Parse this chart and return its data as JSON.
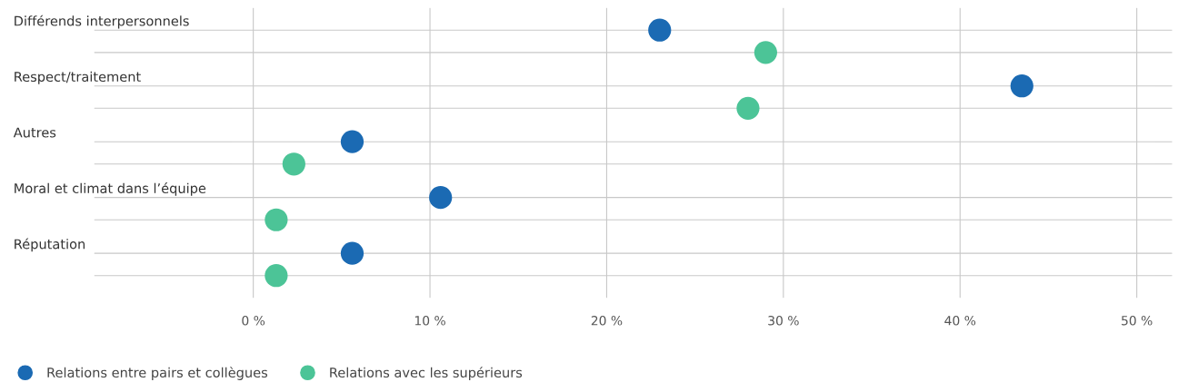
{
  "chart_data": {
    "type": "scatter",
    "categories": [
      "Différends interpersonnels",
      "Respect/traitement",
      "Autres",
      "Moral et climat dans l’équipe",
      "Réputation"
    ],
    "orientation": "horizontal",
    "series": [
      {
        "name": "Relations entre pairs et collègues",
        "color": "#1b6ab3",
        "values": [
          23,
          43.5,
          5.6,
          10.6,
          5.6
        ]
      },
      {
        "name": "Relations avec les supérieurs",
        "color": "#4cc497",
        "values": [
          29,
          28,
          2.3,
          1.3,
          1.3
        ]
      }
    ],
    "xlim": [
      -9,
      52
    ],
    "xticks": [
      {
        "value": 0,
        "label": "0 %"
      },
      {
        "value": 10,
        "label": "10 %"
      },
      {
        "value": 20,
        "label": "20 %"
      },
      {
        "value": 30,
        "label": "30 %"
      },
      {
        "value": 40,
        "label": "40 %"
      },
      {
        "value": 50,
        "label": "50 %"
      }
    ],
    "grid": true,
    "legend": "bottom left",
    "marker": "circle"
  }
}
